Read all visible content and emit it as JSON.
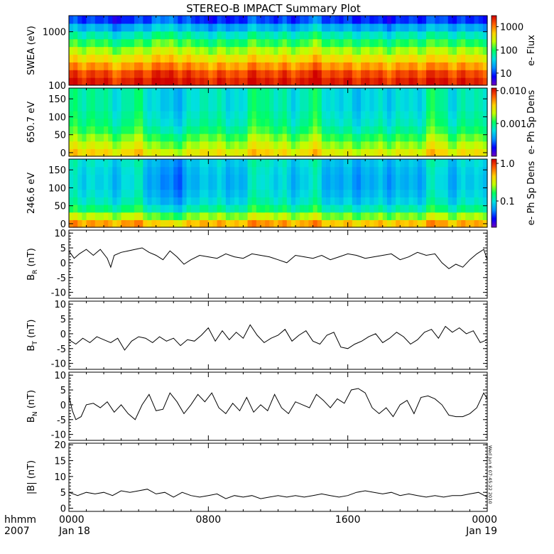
{
  "title": "STEREO-B IMPACT Summary Plot",
  "footer": {
    "x_unit_label": "hhmm",
    "year_label": "2007",
    "x_ticks": [
      {
        "time": "0000",
        "date": "Jan 18",
        "hour": 0
      },
      {
        "time": "0800",
        "date": "",
        "hour": 8
      },
      {
        "time": "1600",
        "date": "",
        "hour": 16
      },
      {
        "time": "0000",
        "date": "Jan 19",
        "hour": 24
      }
    ]
  },
  "timestamp": "Wed Jun  6 07:45:22 2010",
  "colors": {
    "spectrogram_scale": [
      "#7000c0",
      "#0000ff",
      "#0090ff",
      "#00e0e0",
      "#00ff60",
      "#c0ff00",
      "#ffd000",
      "#ff6000",
      "#d00000"
    ],
    "line": "#000000",
    "frame": "#000000"
  },
  "chart_data": [
    {
      "id": "swea",
      "type": "heatmap",
      "ylabel": "SWEA (eV)",
      "y_scale": "log",
      "ylim": [
        100,
        2000
      ],
      "y_ticks": [
        {
          "value": 100,
          "label": "100"
        },
        {
          "value": 1000,
          "label": "1000"
        }
      ],
      "colorbar": {
        "label": "e- Flux",
        "scale": "log",
        "range": [
          3,
          3000
        ],
        "ticks": [
          {
            "value": 10,
            "label": "10"
          },
          {
            "value": 100,
            "label": "100"
          },
          {
            "value": 1000,
            "label": "1000"
          }
        ]
      },
      "x_range_hours": [
        0,
        24
      ],
      "profile_norm": [
        0.95,
        0.9,
        0.8,
        0.7,
        0.6,
        0.5,
        0.4,
        0.28,
        0.15
      ],
      "column_variation": [
        0.02,
        0.05,
        0.0,
        -0.03,
        0.04,
        0.08,
        0.1,
        0.02,
        0.0,
        -0.02,
        0.03,
        0.06,
        0.02,
        0.01,
        0.1,
        0.04,
        0.0,
        0.02,
        -0.02,
        0.0,
        0.02,
        0.05,
        0.03,
        0.0,
        0.02
      ]
    },
    {
      "id": "pad650",
      "type": "heatmap",
      "ylabel": "650.7 eV",
      "ylim": [
        -10,
        180
      ],
      "y_ticks": [
        {
          "value": 0,
          "label": "0"
        },
        {
          "value": 50,
          "label": "50"
        },
        {
          "value": 100,
          "label": "100"
        },
        {
          "value": 150,
          "label": "150"
        }
      ],
      "colorbar": {
        "label": "e- Ph Sp Dens",
        "scale": "log",
        "range": [
          0.0001,
          0.012
        ],
        "ticks": [
          {
            "value": 0.001,
            "label": "0.001"
          },
          {
            "value": 0.01,
            "label": "0.010"
          }
        ]
      },
      "x_range_hours": [
        0,
        24
      ],
      "profile_norm": [
        0.7,
        0.62,
        0.55,
        0.48,
        0.44,
        0.42,
        0.4,
        0.4,
        0.4
      ],
      "column_variation": [
        0.05,
        0.08,
        0.02,
        0.0,
        0.1,
        -0.08,
        -0.1,
        -0.05,
        0.06,
        -0.06,
        0.0,
        0.12,
        0.02,
        -0.04,
        0.1,
        -0.02,
        -0.08,
        -0.06,
        -0.05,
        -0.04,
        -0.06,
        0.12,
        -0.02,
        0.0,
        0.05
      ]
    },
    {
      "id": "pad246",
      "type": "heatmap",
      "ylabel": "246.6 eV",
      "ylim": [
        -10,
        180
      ],
      "y_ticks": [
        {
          "value": 0,
          "label": "0"
        },
        {
          "value": 50,
          "label": "50"
        },
        {
          "value": 100,
          "label": "100"
        },
        {
          "value": 150,
          "label": "150"
        }
      ],
      "colorbar": {
        "label": "e- Ph Sp Dens",
        "scale": "log",
        "range": [
          0.02,
          1.3
        ],
        "ticks": [
          {
            "value": 0.1,
            "label": "0.1"
          },
          {
            "value": 1.0,
            "label": "1.0"
          }
        ]
      },
      "x_range_hours": [
        0,
        24
      ],
      "profile_norm": [
        0.78,
        0.6,
        0.45,
        0.38,
        0.35,
        0.33,
        0.33,
        0.34,
        0.36
      ],
      "column_variation": [
        0.04,
        0.06,
        0.0,
        0.02,
        0.08,
        -0.1,
        -0.12,
        -0.06,
        0.04,
        -0.05,
        0.0,
        0.1,
        0.03,
        -0.02,
        0.08,
        -0.04,
        -0.06,
        -0.05,
        -0.04,
        -0.04,
        -0.05,
        0.08,
        -0.02,
        0.0,
        0.04
      ]
    },
    {
      "id": "br",
      "type": "line",
      "ylabel_main": "B",
      "ylabel_sub": "R",
      "ylabel_unit": " (nT)",
      "ylim": [
        -12,
        11
      ],
      "y_ticks": [
        -10,
        -5,
        0,
        5,
        10
      ],
      "x": [
        0,
        0.3,
        0.6,
        1,
        1.4,
        1.8,
        2.2,
        2.4,
        2.6,
        3,
        3.4,
        3.8,
        4.2,
        4.6,
        5,
        5.4,
        5.8,
        6.2,
        6.6,
        7,
        7.5,
        8,
        8.5,
        9,
        9.5,
        10,
        10.5,
        11,
        11.5,
        12,
        12.5,
        13,
        13.5,
        14,
        14.5,
        15,
        15.5,
        16,
        16.5,
        17,
        17.5,
        18,
        18.5,
        19,
        19.5,
        20,
        20.5,
        21,
        21.4,
        21.8,
        22.2,
        22.6,
        23,
        23.4,
        23.8,
        24
      ],
      "y": [
        4,
        1.5,
        3,
        4.5,
        2.5,
        4.5,
        1.5,
        -1.5,
        2.5,
        3.5,
        4,
        4.5,
        5,
        3.5,
        2.5,
        1,
        4,
        2,
        -0.5,
        1,
        2.5,
        2,
        1.5,
        3,
        2,
        1.5,
        3,
        2.5,
        2,
        1,
        0,
        2.5,
        2,
        1.5,
        2.5,
        1,
        2,
        3,
        2.5,
        1.5,
        2,
        2.5,
        3,
        1,
        2,
        3.5,
        2.5,
        3,
        0,
        -2,
        -0.5,
        -1.5,
        1,
        3,
        4.5,
        1
      ]
    },
    {
      "id": "bt",
      "type": "line",
      "ylabel_main": "B",
      "ylabel_sub": "T",
      "ylabel_unit": " (nT)",
      "ylim": [
        -12,
        11
      ],
      "y_ticks": [
        -10,
        -5,
        0,
        5,
        10
      ],
      "x": [
        0,
        0.4,
        0.8,
        1.2,
        1.6,
        2,
        2.4,
        2.8,
        3.2,
        3.6,
        4,
        4.4,
        4.8,
        5.2,
        5.6,
        6,
        6.4,
        6.8,
        7.2,
        7.6,
        8,
        8.4,
        8.8,
        9.2,
        9.6,
        10,
        10.4,
        10.8,
        11.2,
        11.6,
        12,
        12.4,
        12.8,
        13.2,
        13.6,
        14,
        14.4,
        14.8,
        15.2,
        15.6,
        16,
        16.4,
        16.8,
        17.2,
        17.6,
        18,
        18.4,
        18.8,
        19.2,
        19.6,
        20,
        20.4,
        20.8,
        21.2,
        21.6,
        22,
        22.4,
        22.8,
        23.2,
        23.6,
        24
      ],
      "y": [
        -2,
        -3.5,
        -1.5,
        -3,
        -1,
        -2,
        -3,
        -1.5,
        -5.5,
        -2.5,
        -1,
        -1.5,
        -3,
        -1,
        -2.5,
        -1.5,
        -4,
        -2,
        -2.5,
        -0.5,
        2,
        -2.5,
        1,
        -2,
        0.5,
        -1.5,
        3,
        -0.5,
        -3,
        -1.5,
        -0.5,
        1.5,
        -2.5,
        -0.5,
        1,
        -2.5,
        -3.5,
        -0.5,
        0.5,
        -4.5,
        -5,
        -3.5,
        -2.5,
        -1,
        0,
        -3,
        -1.5,
        0.5,
        -1,
        -3.5,
        -2,
        0.5,
        1.5,
        -1.5,
        2.5,
        0.5,
        2,
        0,
        1,
        -3,
        -2
      ]
    },
    {
      "id": "bn",
      "type": "line",
      "ylabel_main": "B",
      "ylabel_sub": "N",
      "ylabel_unit": " (nT)",
      "ylim": [
        -12,
        11
      ],
      "y_ticks": [
        -10,
        -5,
        0,
        5,
        10
      ],
      "x": [
        0,
        0.2,
        0.4,
        0.7,
        1,
        1.4,
        1.8,
        2.2,
        2.6,
        3,
        3.4,
        3.8,
        4.2,
        4.6,
        5,
        5.4,
        5.8,
        6.2,
        6.6,
        7,
        7.4,
        7.8,
        8.2,
        8.6,
        9,
        9.4,
        9.8,
        10.2,
        10.6,
        11,
        11.4,
        11.8,
        12.2,
        12.6,
        13,
        13.4,
        13.8,
        14.2,
        14.6,
        15,
        15.4,
        15.8,
        16.2,
        16.6,
        17,
        17.4,
        17.8,
        18.2,
        18.6,
        19,
        19.4,
        19.8,
        20.2,
        20.6,
        21,
        21.4,
        21.8,
        22.2,
        22.6,
        23,
        23.4,
        23.8,
        24
      ],
      "y": [
        3,
        -2,
        -5,
        -4,
        0,
        0.5,
        -1,
        1,
        -2.5,
        0,
        -3,
        -5,
        0,
        3.5,
        -2,
        -1.5,
        4,
        1,
        -3,
        0,
        3.5,
        1,
        4,
        -1,
        -3,
        0.5,
        -2,
        2.5,
        -2.5,
        0,
        -2,
        3.5,
        -1,
        -3,
        1,
        0,
        -1,
        3.5,
        1.5,
        -1,
        2,
        0.5,
        5,
        5.5,
        4,
        -1,
        -3,
        -1,
        -4,
        0,
        1.5,
        -3,
        2.5,
        3,
        2,
        0,
        -3.5,
        -4,
        -4,
        -3,
        -1,
        4,
        2
      ]
    },
    {
      "id": "bmag",
      "type": "line",
      "ylabel_main": "|B|",
      "ylabel_sub": "",
      "ylabel_unit": " (nT)",
      "ylim": [
        -1,
        20.5
      ],
      "y_ticks": [
        0,
        5,
        10,
        15,
        20
      ],
      "x": [
        0,
        0.5,
        1,
        1.5,
        2,
        2.5,
        3,
        3.5,
        4,
        4.5,
        5,
        5.5,
        6,
        6.5,
        7,
        7.5,
        8,
        8.5,
        9,
        9.5,
        10,
        10.5,
        11,
        11.5,
        12,
        12.5,
        13,
        13.5,
        14,
        14.5,
        15,
        15.5,
        16,
        16.5,
        17,
        17.5,
        18,
        18.5,
        19,
        19.5,
        20,
        20.5,
        21,
        21.5,
        22,
        22.5,
        23,
        23.5,
        24
      ],
      "y": [
        5,
        4,
        5,
        4.5,
        5,
        4,
        5.5,
        5,
        5.5,
        6,
        4.5,
        5,
        3.5,
        5,
        4,
        3.5,
        4,
        4.5,
        3,
        4,
        3.5,
        4,
        3,
        3.5,
        4,
        3.5,
        4,
        3.5,
        4,
        4.5,
        4,
        3.5,
        4,
        5,
        5.5,
        5,
        4.5,
        5,
        4,
        4.5,
        4,
        3.5,
        4,
        3.5,
        4,
        4,
        4.5,
        5,
        3.5
      ]
    }
  ]
}
